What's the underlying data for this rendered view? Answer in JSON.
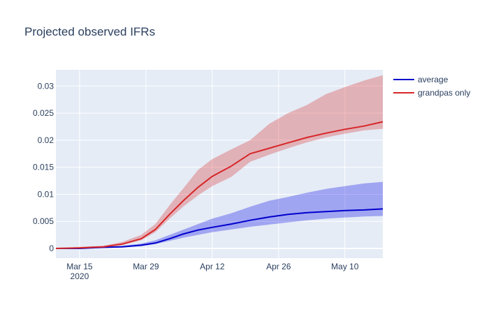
{
  "chart_data": {
    "type": "line",
    "title": "Projected observed IFRs",
    "xlabel": "",
    "ylabel": "",
    "x_range": [
      "2020-03-10",
      "2020-05-18"
    ],
    "ylim": [
      -0.0018,
      0.033
    ],
    "grid": true,
    "legend_position": "top-right",
    "x_ticks": [
      {
        "date": "2020-03-15",
        "label": "Mar 15",
        "sublabel": "2020"
      },
      {
        "date": "2020-03-29",
        "label": "Mar 29",
        "sublabel": ""
      },
      {
        "date": "2020-04-12",
        "label": "Apr 12",
        "sublabel": ""
      },
      {
        "date": "2020-04-26",
        "label": "Apr 26",
        "sublabel": ""
      },
      {
        "date": "2020-05-10",
        "label": "May 10",
        "sublabel": ""
      }
    ],
    "y_ticks": [
      {
        "value": 0,
        "label": "0"
      },
      {
        "value": 0.005,
        "label": "0.005"
      },
      {
        "value": 0.01,
        "label": "0.01"
      },
      {
        "value": 0.015,
        "label": "0.015"
      },
      {
        "value": 0.02,
        "label": "0.02"
      },
      {
        "value": 0.025,
        "label": "0.025"
      },
      {
        "value": 0.03,
        "label": "0.03"
      }
    ],
    "x": [
      "2020-03-10",
      "2020-03-15",
      "2020-03-20",
      "2020-03-24",
      "2020-03-28",
      "2020-03-31",
      "2020-04-03",
      "2020-04-06",
      "2020-04-09",
      "2020-04-12",
      "2020-04-16",
      "2020-04-20",
      "2020-04-24",
      "2020-04-28",
      "2020-05-02",
      "2020-05-06",
      "2020-05-10",
      "2020-05-14",
      "2020-05-18"
    ],
    "series": [
      {
        "name": "average",
        "color": "#0000cc",
        "band_color": "rgba(0,0,230,0.3)",
        "values": [
          0.0,
          0.0,
          0.0002,
          0.0003,
          0.0006,
          0.001,
          0.0018,
          0.0027,
          0.0034,
          0.0039,
          0.0045,
          0.0052,
          0.0058,
          0.0063,
          0.0066,
          0.0068,
          0.007,
          0.0071,
          0.0073
        ],
        "lower": [
          0.0,
          0.0,
          0.0001,
          0.0002,
          0.0004,
          0.0008,
          0.0014,
          0.002,
          0.0025,
          0.003,
          0.0035,
          0.004,
          0.0044,
          0.0048,
          0.0052,
          0.0055,
          0.0057,
          0.0059,
          0.006
        ],
        "upper": [
          0.0,
          0.0001,
          0.0003,
          0.0005,
          0.0009,
          0.0015,
          0.0025,
          0.0035,
          0.0045,
          0.0055,
          0.0065,
          0.0077,
          0.0088,
          0.0095,
          0.0103,
          0.011,
          0.0115,
          0.012,
          0.0123
        ]
      },
      {
        "name": "grandpas only",
        "color": "#d62728",
        "band_color": "rgba(214,39,40,0.3)",
        "values": [
          0.0,
          0.0001,
          0.0003,
          0.0008,
          0.0018,
          0.0035,
          0.0063,
          0.0089,
          0.0113,
          0.0133,
          0.0152,
          0.0175,
          0.0185,
          0.0195,
          0.0205,
          0.0213,
          0.022,
          0.0226,
          0.0234
        ],
        "lower": [
          0.0,
          0.0,
          0.0002,
          0.0006,
          0.0015,
          0.003,
          0.0055,
          0.0078,
          0.0098,
          0.0115,
          0.0132,
          0.016,
          0.0173,
          0.0185,
          0.0196,
          0.0205,
          0.0212,
          0.0218,
          0.0221
        ],
        "upper": [
          0.0,
          0.0003,
          0.0005,
          0.0012,
          0.0025,
          0.0045,
          0.008,
          0.0112,
          0.0145,
          0.0165,
          0.0183,
          0.02,
          0.023,
          0.025,
          0.0265,
          0.0285,
          0.0298,
          0.031,
          0.032
        ]
      }
    ]
  }
}
